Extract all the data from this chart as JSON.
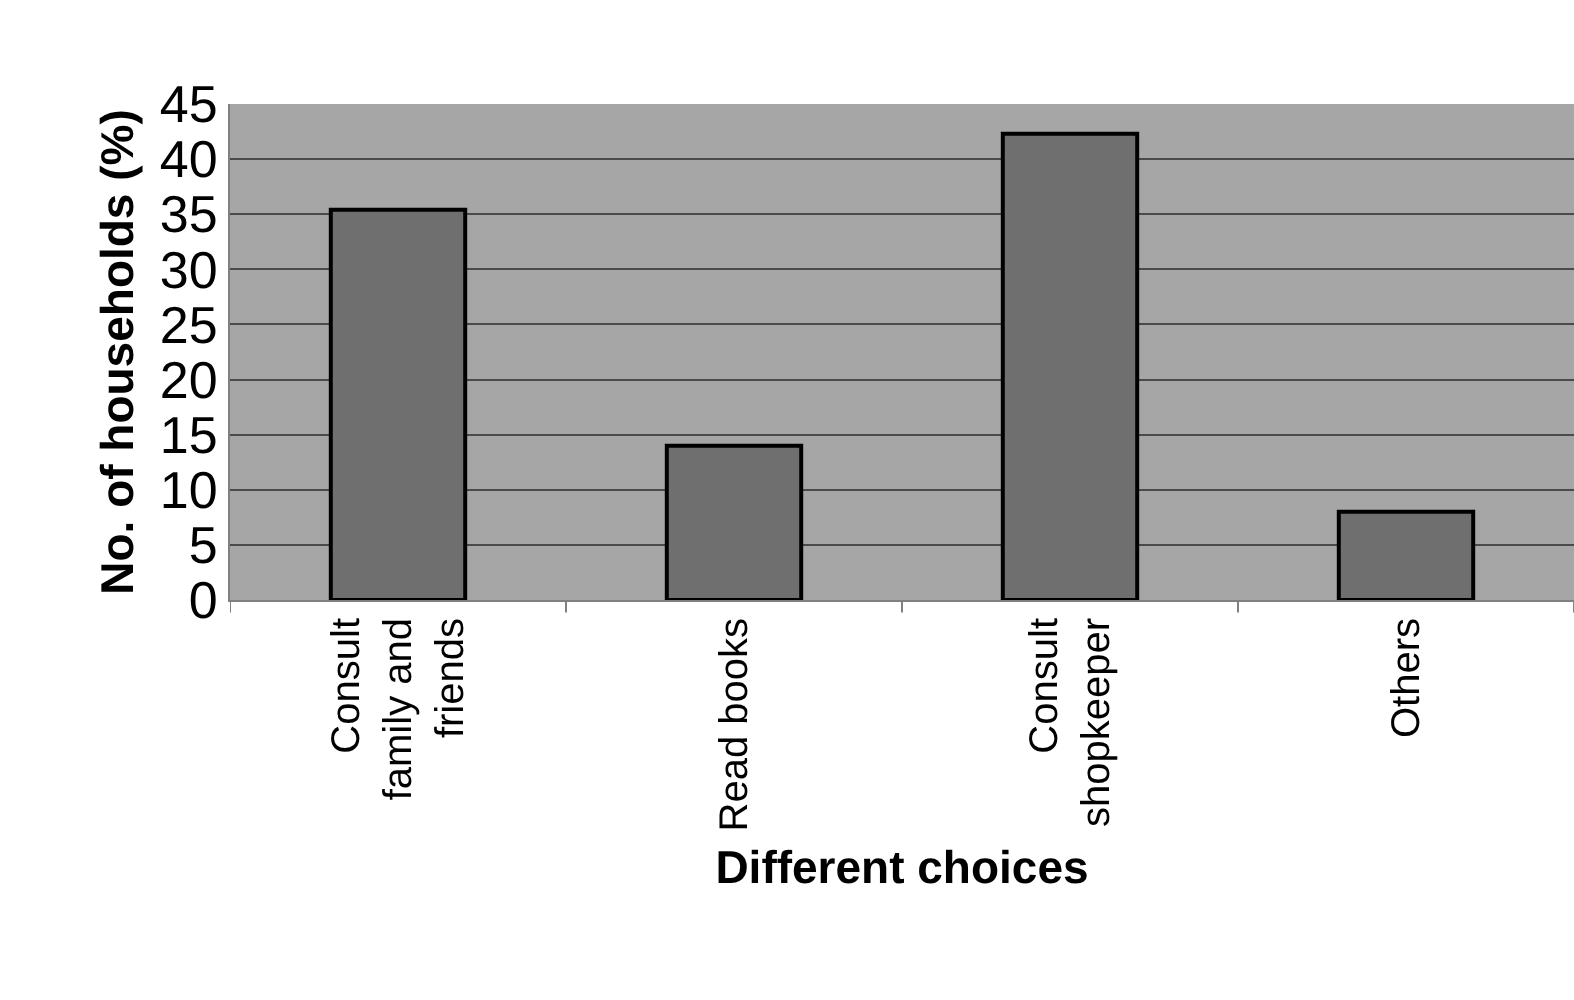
{
  "chart_data": {
    "type": "bar",
    "xlabel": "Different choices",
    "ylabel": "No. of households (%)",
    "categories": [
      "Consult family and friends",
      "Read books",
      "Consult shopkeeper",
      "Others"
    ],
    "values": [
      35.4,
      14,
      42.3,
      8
    ],
    "color": "#6f6f6f",
    "ylim": [
      0,
      45
    ],
    "yticks": [
      0,
      5,
      10,
      15,
      20,
      25,
      30,
      35,
      40,
      45
    ],
    "grid": "y"
  }
}
